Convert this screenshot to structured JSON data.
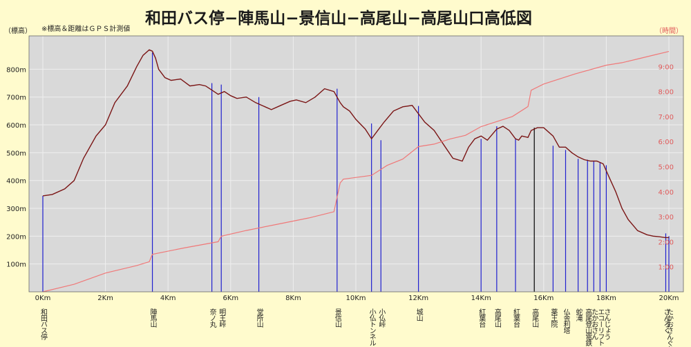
{
  "chart_data": {
    "type": "line",
    "title": "和田バス停−陣馬山−景信山−高尾山−高尾山口高低図",
    "note": "※標高＆距離はＧＰＳ計測値",
    "ylabel": "（標高）",
    "y2label": "（時間）",
    "xlim": [
      0,
      20
    ],
    "ylim": [
      0,
      920
    ],
    "y2lim": [
      0,
      10
    ],
    "x_ticks": [
      "0Km",
      "2Km",
      "4Km",
      "6Km",
      "8Km",
      "10Km",
      "12Km",
      "14Km",
      "16Km",
      "18Km",
      "20Km"
    ],
    "y_ticks": [
      "100m",
      "200m",
      "300m",
      "400m",
      "500m",
      "600m",
      "700m",
      "800m"
    ],
    "y2_ticks": [
      "1:00",
      "2:00",
      "3:00",
      "4:00",
      "5:00",
      "6:00",
      "7:00",
      "8:00",
      "9:00"
    ],
    "colors": {
      "elevation": "#7a1414",
      "time": "#f07878",
      "marker": "#1f1fcf",
      "marker_peak": "#000000",
      "plot_bg": "#d9d9d9"
    },
    "series": [
      {
        "key": "elevation",
        "x": [
          0,
          0.3,
          0.7,
          1.0,
          1.3,
          1.7,
          2.0,
          2.3,
          2.7,
          3.0,
          3.2,
          3.4,
          3.5,
          3.6,
          3.7,
          3.9,
          4.1,
          4.4,
          4.7,
          5.0,
          5.2,
          5.4,
          5.6,
          5.8,
          6.0,
          6.2,
          6.5,
          6.8,
          7.1,
          7.3,
          7.6,
          7.9,
          8.1,
          8.4,
          8.7,
          9.0,
          9.3,
          9.5,
          9.6,
          9.8,
          10.0,
          10.3,
          10.5,
          10.7,
          10.9,
          11.2,
          11.5,
          11.8,
          12.0,
          12.2,
          12.5,
          12.8,
          13.1,
          13.4,
          13.6,
          13.8,
          14.0,
          14.2,
          14.5,
          14.7,
          14.9,
          15.1,
          15.2,
          15.3,
          15.5,
          15.6,
          15.8,
          16.0,
          16.3,
          16.5,
          16.7,
          16.9,
          17.1,
          17.3,
          17.5,
          17.7,
          17.9,
          18.1,
          18.3,
          18.5,
          18.7,
          19.0,
          19.3,
          19.5,
          19.7,
          19.9,
          20.0
        ],
        "y": [
          345,
          350,
          370,
          400,
          480,
          560,
          600,
          680,
          740,
          810,
          850,
          870,
          865,
          840,
          800,
          770,
          760,
          765,
          740,
          745,
          740,
          725,
          710,
          720,
          705,
          695,
          700,
          680,
          665,
          655,
          670,
          685,
          690,
          680,
          700,
          730,
          720,
          680,
          665,
          650,
          620,
          585,
          550,
          580,
          610,
          650,
          665,
          670,
          640,
          610,
          580,
          530,
          480,
          470,
          520,
          550,
          560,
          545,
          585,
          595,
          580,
          550,
          545,
          560,
          555,
          580,
          590,
          590,
          560,
          520,
          520,
          500,
          485,
          475,
          470,
          470,
          460,
          410,
          360,
          300,
          260,
          220,
          205,
          200,
          198,
          195,
          195
        ]
      },
      {
        "key": "time",
        "x": [
          0,
          1,
          2,
          3,
          3.4,
          3.5,
          4.5,
          5.6,
          5.7,
          6.5,
          7.5,
          8.5,
          9.3,
          9.5,
          9.6,
          10.5,
          11.0,
          11.5,
          12.0,
          12.5,
          13.0,
          13.5,
          14.0,
          15.0,
          15.5,
          15.6,
          16.0,
          17.0,
          18.0,
          18.5,
          19.0,
          19.5,
          20.0
        ],
        "y": [
          0.0,
          0.3,
          0.75,
          1.05,
          1.2,
          1.5,
          1.75,
          2.0,
          2.22,
          2.45,
          2.7,
          2.95,
          3.2,
          4.35,
          4.5,
          4.65,
          5.05,
          5.3,
          5.8,
          5.9,
          6.1,
          6.25,
          6.6,
          7.0,
          7.4,
          8.05,
          8.3,
          8.7,
          9.05,
          9.15,
          9.3,
          9.45,
          9.6
        ]
      }
    ],
    "markers": [
      {
        "x": 0.0,
        "y": 345,
        "label": "和田バス停",
        "peak": false
      },
      {
        "x": 3.5,
        "y": 860,
        "label": "陣馬山",
        "peak": false
      },
      {
        "x": 5.4,
        "y": 750,
        "label": "奈ノ丸",
        "peak": false
      },
      {
        "x": 5.7,
        "y": 745,
        "label": "明王峠",
        "peak": false
      },
      {
        "x": 6.9,
        "y": 700,
        "label": "堂所山",
        "peak": false
      },
      {
        "x": 9.4,
        "y": 730,
        "label": "景信山",
        "peak": false
      },
      {
        "x": 10.5,
        "y": 605,
        "label": "小仏トンネル",
        "peak": false
      },
      {
        "x": 10.8,
        "y": 545,
        "label": "小仏峠",
        "peak": false
      },
      {
        "x": 12.0,
        "y": 668,
        "label": "城山",
        "peak": false
      },
      {
        "x": 14.0,
        "y": 550,
        "label": "紅葉台",
        "peak": false
      },
      {
        "x": 14.5,
        "y": 595,
        "label": "高尾山",
        "peak": false
      },
      {
        "x": 15.1,
        "y": 550,
        "label": "紅葉台",
        "peak": false
      },
      {
        "x": 15.7,
        "y": 590,
        "label": "高尾山",
        "peak": true
      },
      {
        "x": 16.3,
        "y": 525,
        "label": "薬王院",
        "peak": false
      },
      {
        "x": 16.7,
        "y": 510,
        "label": "仏舎利塔",
        "peak": false
      },
      {
        "x": 17.1,
        "y": 478,
        "label": "蛇滝",
        "peak": false
      },
      {
        "x": 17.4,
        "y": 475,
        "label": "高尾登山電鉄",
        "peak": false
      },
      {
        "x": 17.6,
        "y": 470,
        "label": "たかおさん",
        "peak": false
      },
      {
        "x": 17.8,
        "y": 465,
        "label": "エコーリフト",
        "peak": false
      },
      {
        "x": 18.0,
        "y": 455,
        "label": "さんじょう",
        "peak": false
      },
      {
        "x": 19.9,
        "y": 210,
        "label": "さんろく",
        "peak": false
      },
      {
        "x": 20.0,
        "y": 200,
        "label": "たかおさんぐち",
        "peak": false
      }
    ]
  }
}
